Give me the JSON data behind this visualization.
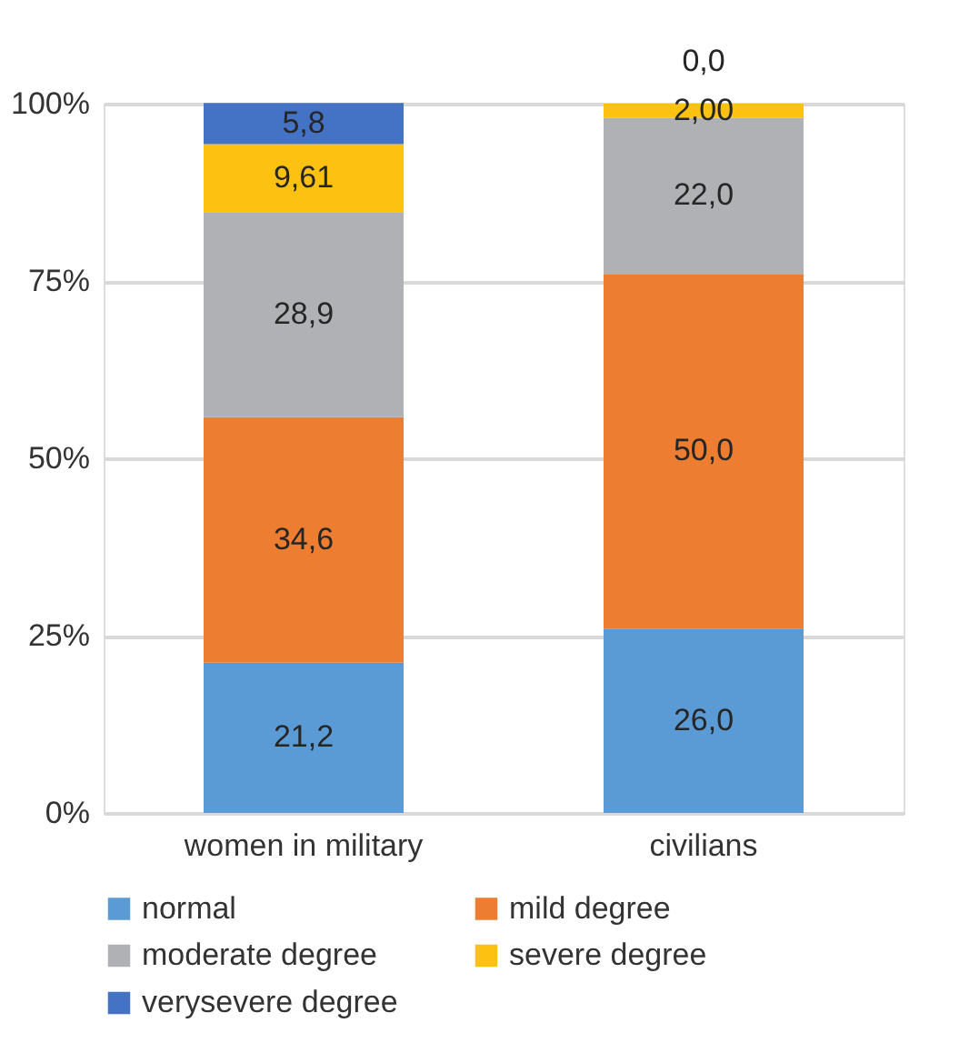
{
  "chart_data": {
    "type": "bar",
    "stacked": true,
    "categories": [
      "women in military",
      "civilians"
    ],
    "series": [
      {
        "name": "normal",
        "color": "#5b9bd5",
        "values": [
          21.2,
          26.0
        ],
        "value_labels": [
          "21,2",
          "26,0"
        ]
      },
      {
        "name": "mild degree",
        "color": "#ed7d31",
        "values": [
          34.6,
          50.0
        ],
        "value_labels": [
          "34,6",
          "50,0"
        ]
      },
      {
        "name": "moderate degree",
        "color": "#b0b1b5",
        "values": [
          28.9,
          22.0
        ],
        "value_labels": [
          "28,9",
          "22,0"
        ]
      },
      {
        "name": "severe degree",
        "color": "#fcc111",
        "values": [
          9.61,
          2.0
        ],
        "value_labels": [
          "9,61",
          "2,00"
        ]
      },
      {
        "name": "verysevere degree",
        "color": "#4472c4",
        "values": [
          5.8,
          0.0
        ],
        "value_labels": [
          "5,8",
          "0,0"
        ]
      }
    ],
    "ylim": [
      0,
      100
    ],
    "yticks": [
      {
        "value": 0,
        "label": "0%"
      },
      {
        "value": 25,
        "label": "25%"
      },
      {
        "value": 50,
        "label": "50%"
      },
      {
        "value": 75,
        "label": "75%"
      },
      {
        "value": 100,
        "label": "100%"
      }
    ],
    "grid": "y",
    "legend": "bottom"
  }
}
